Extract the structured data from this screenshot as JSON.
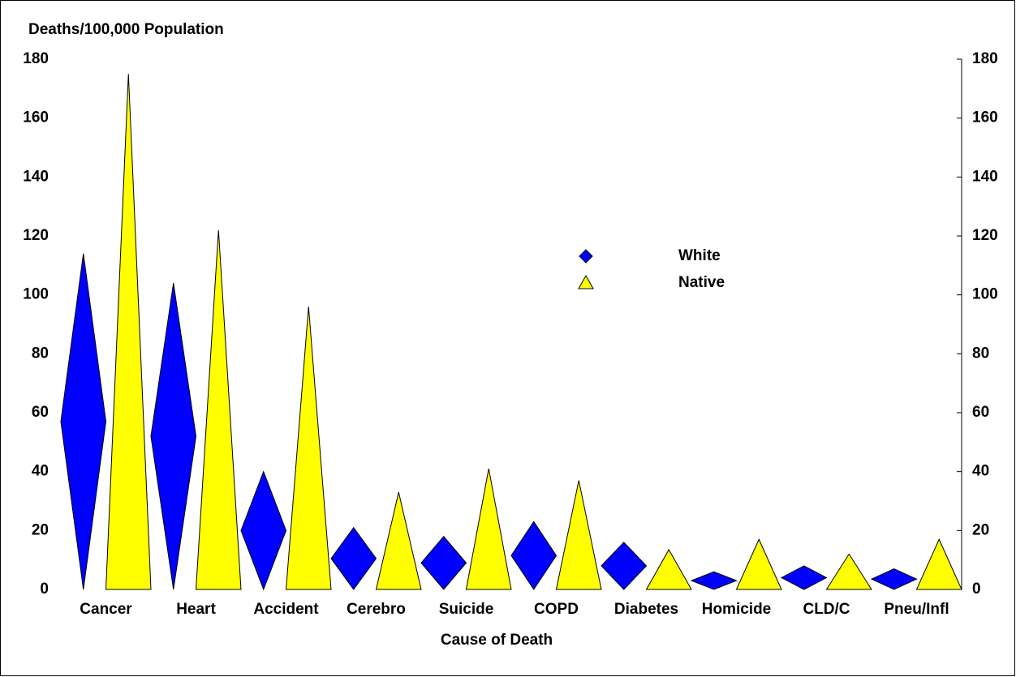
{
  "chart_data": {
    "type": "bar",
    "y_label": "Deaths/100,000 Population",
    "x_label": "Cause of Death",
    "categories": [
      "Cancer",
      "Heart",
      "Accident",
      "Cerebro",
      "Suicide",
      "COPD",
      "Diabetes",
      "Homicide",
      "CLD/C",
      "Pneu/Infl"
    ],
    "series": [
      {
        "name": "White",
        "color": "#0000ff",
        "marker": "diamond",
        "values": [
          114,
          104,
          40,
          21,
          18,
          23,
          16,
          6,
          8,
          7
        ]
      },
      {
        "name": "Native",
        "color": "#ffff00",
        "marker": "triangle",
        "values": [
          175,
          122,
          96,
          33,
          41,
          37,
          13.5,
          17,
          12,
          17
        ]
      }
    ],
    "ylim": [
      0,
      180
    ],
    "yticks": [
      0,
      20,
      40,
      60,
      80,
      100,
      120,
      140,
      160,
      180
    ]
  }
}
